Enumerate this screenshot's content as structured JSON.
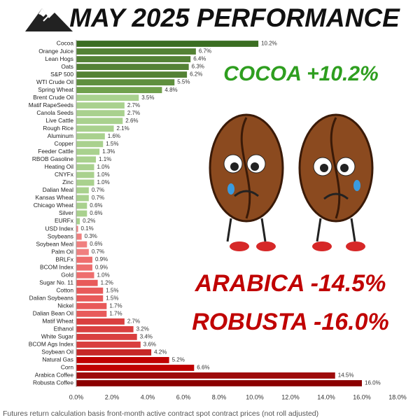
{
  "chart_data": {
    "type": "bar",
    "orientation": "horizontal",
    "title": "MAY 2025 PERFORMANCE",
    "annotations": [
      "COCOA +10.2%",
      "ARABICA -14.5%",
      "ROBUSTA -16.0%"
    ],
    "footnote": "Futures return calculation basis front-month active contract spot contract prices (not roll adjusted)",
    "categories": [
      "Cocoa",
      "Orange Juice",
      "Lean Hogs",
      "Oats",
      "S&P 500",
      "WTI Crude Oil",
      "Spring Wheat",
      "Brent Crude Oil",
      "Matif RapeSeeds",
      "Canola Seeds",
      "Live Cattle",
      "Rough Rice",
      "Aluminum",
      "Copper",
      "Feeder Cattle",
      "RBOB Gasoline",
      "Heating Oil",
      "CNYFx",
      "Zinc",
      "Dalian Meal",
      "Kansas Wheat",
      "Chicago Wheat",
      "Silver",
      "EURFx",
      "USD Index",
      "Soybeans",
      "Soybean Meal",
      "Palm Oil",
      "BRLFx",
      "BCOM Index",
      "Gold",
      "Sugar No. 11",
      "Cotton",
      "Dalian Soybeans",
      "Nickel",
      "Dalian Bean Oil",
      "Matif Wheat",
      "Ethanol",
      "White Sugar",
      "BCOM Ags Index",
      "Soybean Oil",
      "Natural Gas",
      "Corn",
      "Arabica Coffee",
      "Robusta Coffee"
    ],
    "values": [
      10.2,
      6.7,
      6.4,
      6.3,
      6.2,
      5.5,
      4.8,
      3.5,
      2.7,
      2.7,
      2.6,
      2.1,
      1.6,
      1.5,
      1.3,
      1.1,
      1.0,
      1.0,
      1.0,
      0.7,
      0.7,
      0.6,
      0.6,
      0.2,
      0.1,
      0.3,
      0.6,
      0.7,
      0.9,
      0.9,
      1.0,
      1.2,
      1.5,
      1.5,
      1.7,
      1.7,
      2.7,
      3.2,
      3.4,
      3.6,
      4.2,
      5.2,
      6.6,
      14.5,
      16.0
    ],
    "value_labels": [
      "10.2%",
      "6.7%",
      "6.4%",
      "6.3%",
      "6.2%",
      "5.5%",
      "4.8%",
      "3.5%",
      "2.7%",
      "2.7%",
      "2.6%",
      "2.1%",
      "1.6%",
      "1.5%",
      "1.3%",
      "1.1%",
      "1.0%",
      "1.0%",
      "1.0%",
      "0.7%",
      "0.7%",
      "0.6%",
      "0.6%",
      "0.2%",
      "0.1%",
      "0.3%",
      "0.6%",
      "0.7%",
      "0.9%",
      "0.9%",
      "1.0%",
      "1.2%",
      "1.5%",
      "1.5%",
      "1.7%",
      "1.7%",
      "2.7%",
      "3.2%",
      "3.4%",
      "3.6%",
      "4.2%",
      "5.2%",
      "6.6%",
      "14.5%",
      "16.0%"
    ],
    "colors": [
      "#3b6e22",
      "#548235",
      "#548235",
      "#548235",
      "#548235",
      "#5f8f3e",
      "#70a04c",
      "#a9d18e",
      "#a9d18e",
      "#a9d18e",
      "#a9d18e",
      "#a9d18e",
      "#a9d18e",
      "#a9d18e",
      "#a9d18e",
      "#a9d18e",
      "#a9d18e",
      "#a9d18e",
      "#a9d18e",
      "#a9d18e",
      "#a9d18e",
      "#a9d18e",
      "#a9d18e",
      "#a9d18e",
      "#f08080",
      "#f08080",
      "#f08080",
      "#f08080",
      "#ee6e6e",
      "#ee6e6e",
      "#ee6e6e",
      "#e85a5a",
      "#e85a5a",
      "#e85a5a",
      "#e85a5a",
      "#e85a5a",
      "#d93f3f",
      "#d93f3f",
      "#d93f3f",
      "#d93f3f",
      "#c62828",
      "#c00000",
      "#c00000",
      "#9e0b0b",
      "#8b0000"
    ],
    "xlim": [
      0,
      18
    ],
    "xticks": [
      {
        "value": 0,
        "label": "0.0%"
      },
      {
        "value": 2,
        "label": "2.0%"
      },
      {
        "value": 4,
        "label": "4.0%"
      },
      {
        "value": 6,
        "label": "6.0%"
      },
      {
        "value": 8,
        "label": "8.0%"
      },
      {
        "value": 10,
        "label": "10.0%"
      },
      {
        "value": 12,
        "label": "12.0%"
      },
      {
        "value": 14,
        "label": "14.0%"
      },
      {
        "value": 16,
        "label": "16.0%"
      },
      {
        "value": 18,
        "label": "18.0%"
      }
    ],
    "grid": false
  }
}
